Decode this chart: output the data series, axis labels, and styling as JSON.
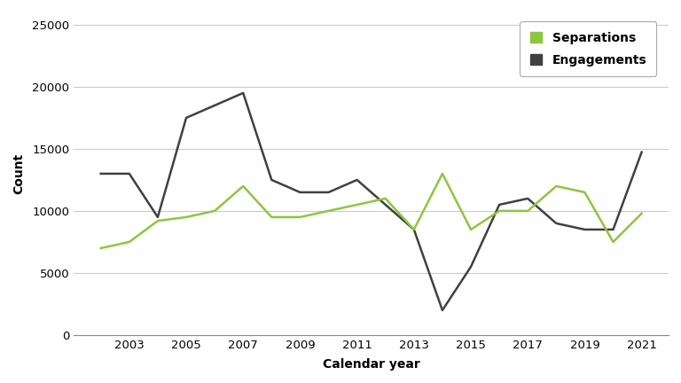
{
  "years": [
    2002,
    2003,
    2004,
    2005,
    2006,
    2007,
    2008,
    2009,
    2010,
    2011,
    2012,
    2013,
    2014,
    2015,
    2016,
    2017,
    2018,
    2019,
    2020,
    2021
  ],
  "engagements": [
    13000,
    13000,
    9500,
    17500,
    18500,
    19500,
    12500,
    11500,
    11500,
    12500,
    10500,
    8500,
    2000,
    5500,
    10500,
    11000,
    9000,
    8500,
    8500,
    14733
  ],
  "separations": [
    7000,
    7500,
    9200,
    9500,
    10000,
    12000,
    9500,
    9500,
    10000,
    10500,
    11000,
    8500,
    13000,
    8500,
    10000,
    10000,
    12000,
    11500,
    7500,
    9800
  ],
  "engagement_color": "#404040",
  "separation_color": "#8dc63f",
  "background_color": "#ffffff",
  "xlabel": "Calendar year",
  "ylabel": "Count",
  "ylim": [
    0,
    26000
  ],
  "yticks": [
    0,
    5000,
    10000,
    15000,
    20000,
    25000
  ],
  "ytick_labels": [
    "0",
    "5000",
    "10000",
    "15000",
    "20000",
    "25000"
  ],
  "xticks": [
    2003,
    2005,
    2007,
    2009,
    2011,
    2013,
    2015,
    2017,
    2019,
    2021
  ],
  "legend_labels": [
    "Separations",
    "Engagements"
  ],
  "grid_color": "#cccccc",
  "linewidth": 1.8
}
